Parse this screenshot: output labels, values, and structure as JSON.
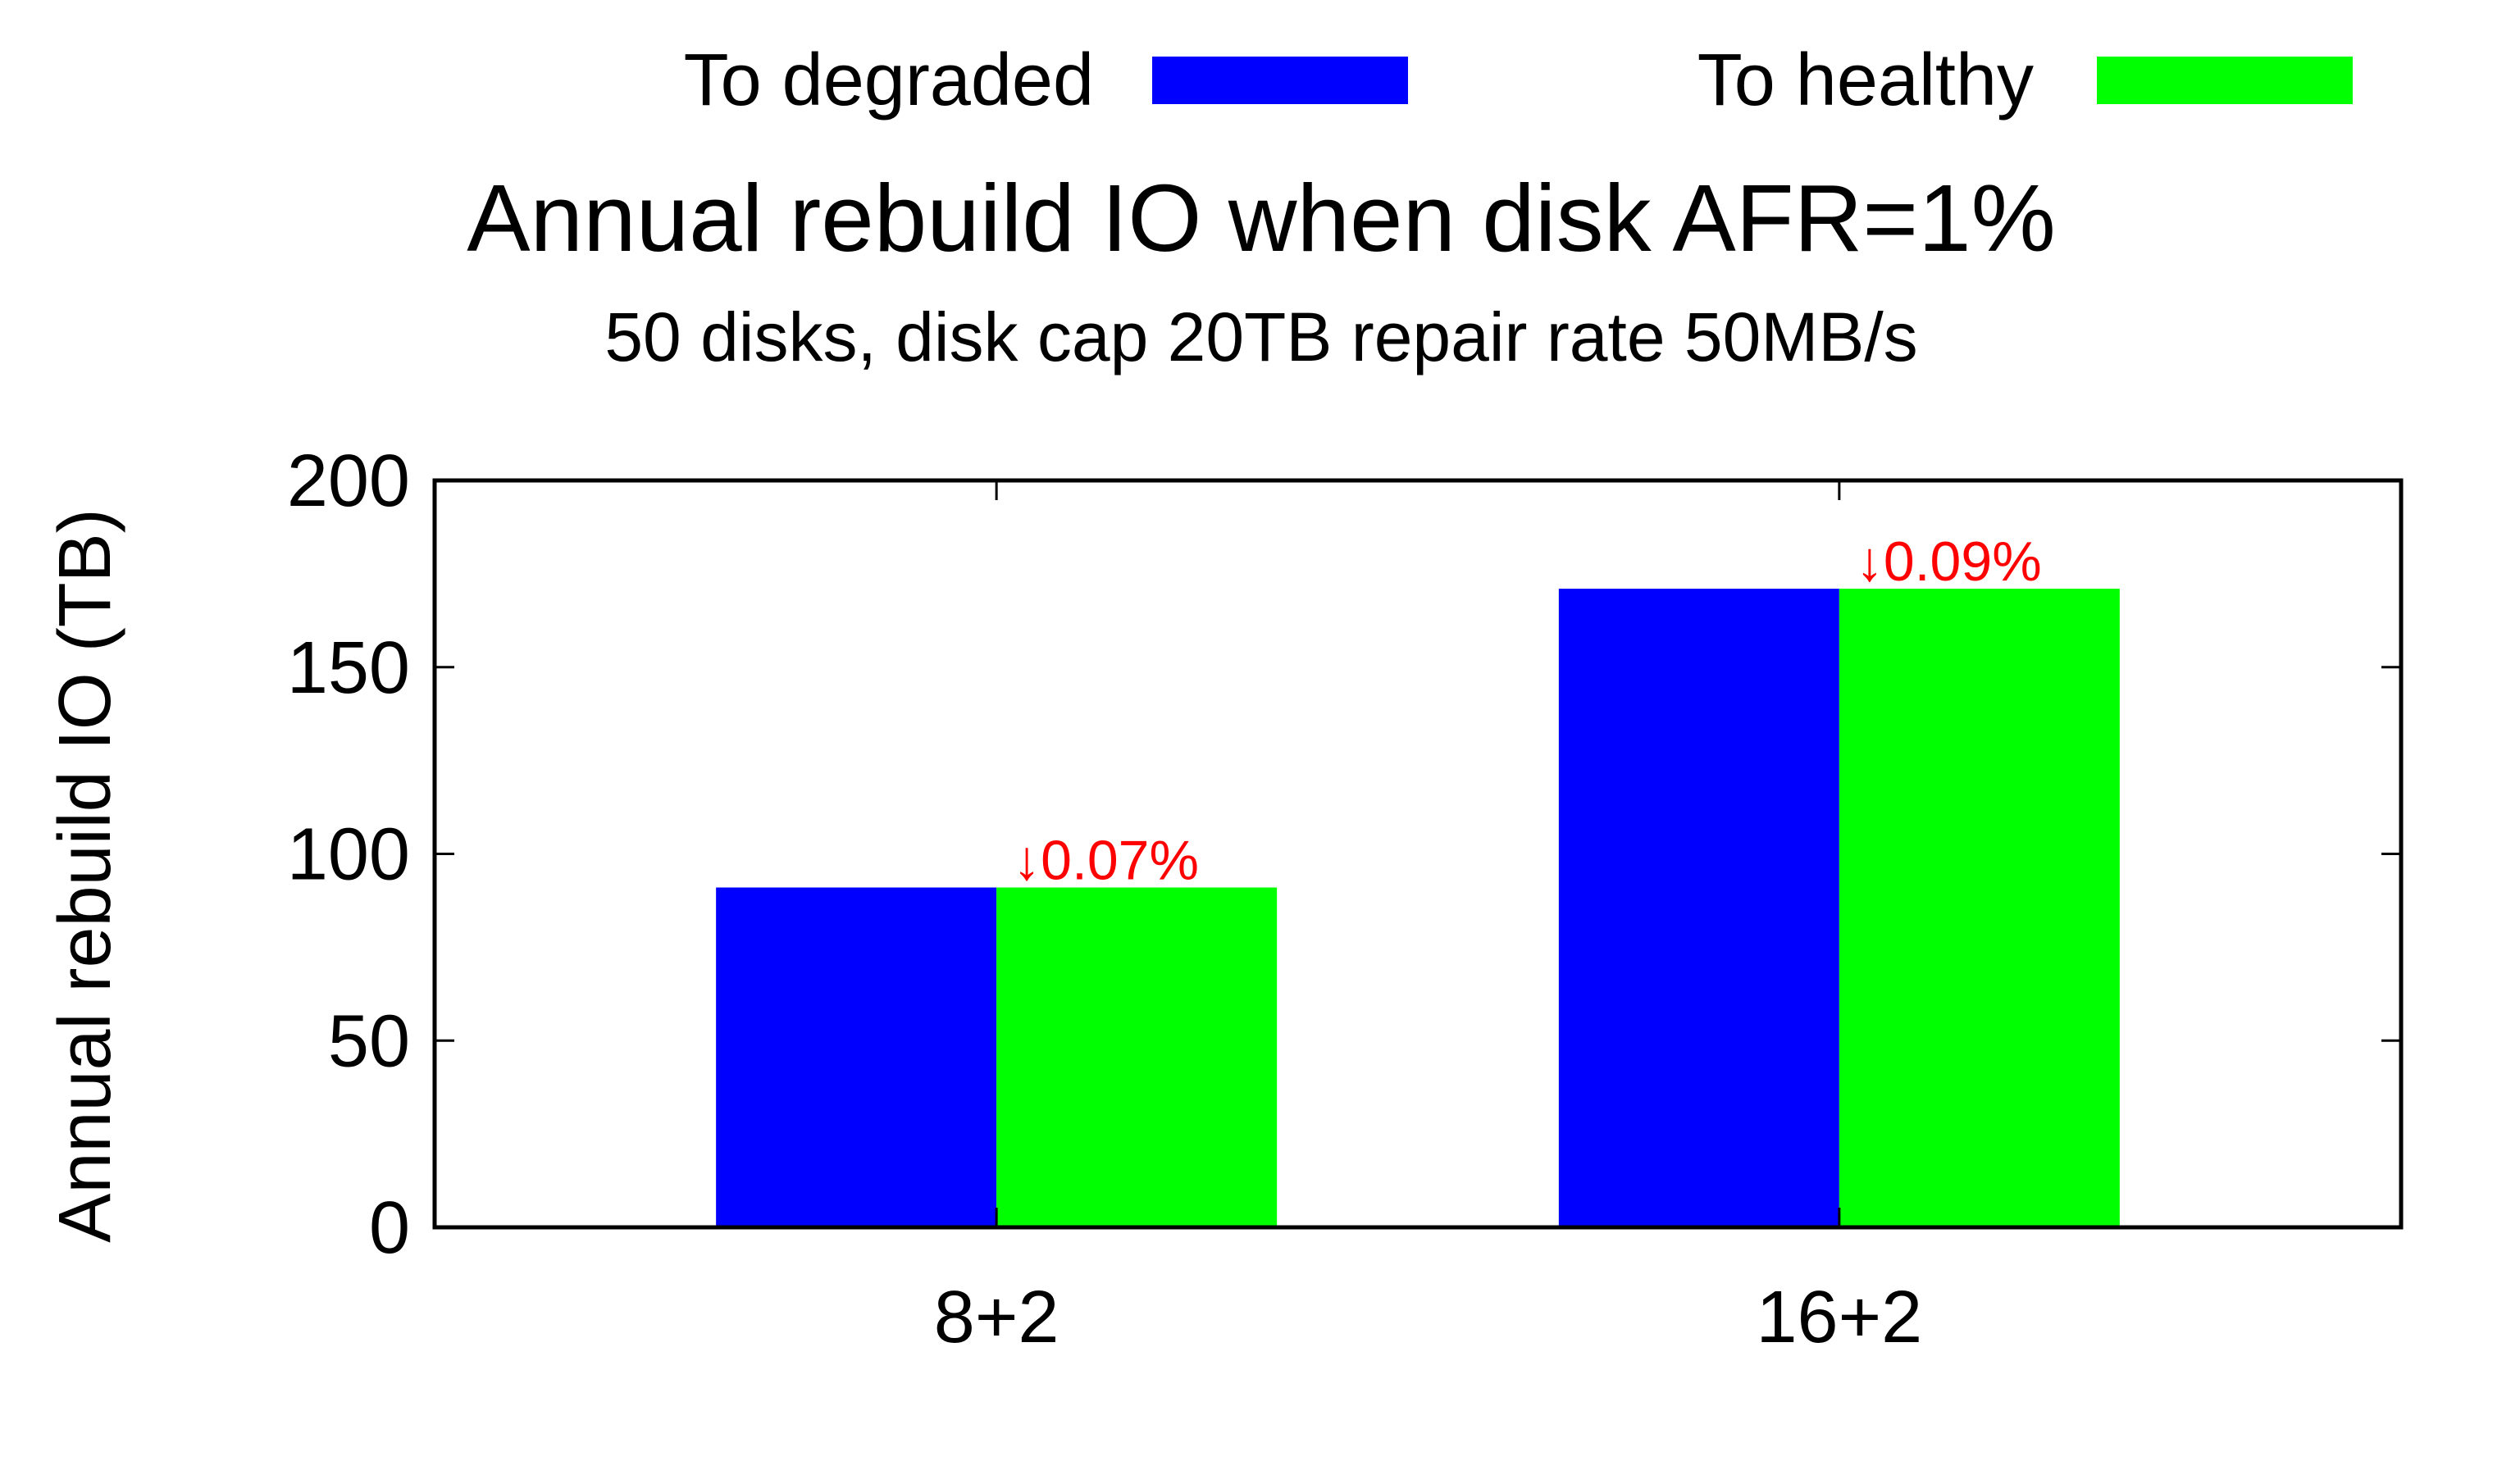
{
  "chart_data": {
    "type": "bar",
    "title": "Annual rebuild IO when disk AFR=1%",
    "subtitle": "50 disks, disk cap 20TB repair rate 50MB/s",
    "xlabel": "",
    "ylabel": "Annual rebuild IO (TB)",
    "ylim": [
      0,
      200
    ],
    "yticks": [
      0,
      50,
      100,
      150,
      200
    ],
    "grid": false,
    "legend_position": "top",
    "categories": [
      "8+2",
      "16+2"
    ],
    "series": [
      {
        "name": "To degraded",
        "color": "#0000ff",
        "values": [
          91,
          171
        ]
      },
      {
        "name": "To healthy",
        "color": "#00ff00",
        "values": [
          91,
          171
        ]
      }
    ],
    "annotations": [
      {
        "category": "8+2",
        "series": "To healthy",
        "text": "↓0.07%",
        "color": "#ff0000"
      },
      {
        "category": "16+2",
        "series": "To healthy",
        "text": "↓0.09%",
        "color": "#ff0000"
      }
    ]
  }
}
